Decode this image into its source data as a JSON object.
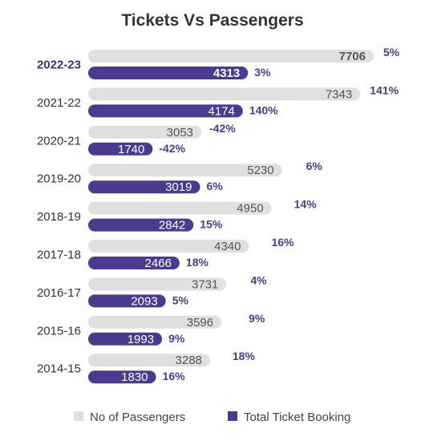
{
  "chart_data": {
    "type": "bar",
    "orientation": "horizontal",
    "title": "Tickets Vs Passengers",
    "xlabel": "",
    "ylabel": "",
    "categories": [
      "2022-23",
      "2021-22",
      "2020-21",
      "2019-20",
      "2018-19",
      "2017-18",
      "2016-17",
      "2015-16",
      "2014-15"
    ],
    "highlight_category": "2022-23",
    "series": [
      {
        "name": "No of Passengers",
        "color": "#e0e0e0",
        "text_color": "#555555",
        "values": [
          7706,
          7343,
          3053,
          5230,
          4950,
          4340,
          3731,
          3596,
          3288
        ],
        "growth_labels": [
          "5%",
          "141%",
          "-42%",
          "6%",
          "14%",
          "16%",
          "4%",
          "9%",
          "18%"
        ]
      },
      {
        "name": "Total Ticket Booking",
        "color": "#4b3a8f",
        "text_color": "#ffffff",
        "values": [
          4313,
          4174,
          1740,
          3019,
          2842,
          2466,
          2093,
          1993,
          1830
        ],
        "growth_labels": [
          "3%",
          "140%",
          "-42%",
          "6%",
          "15%",
          "18%",
          "5%",
          "9%",
          "16%"
        ]
      }
    ],
    "xlim": [
      0,
      7706
    ],
    "grid": false,
    "legend_position": "bottom"
  }
}
